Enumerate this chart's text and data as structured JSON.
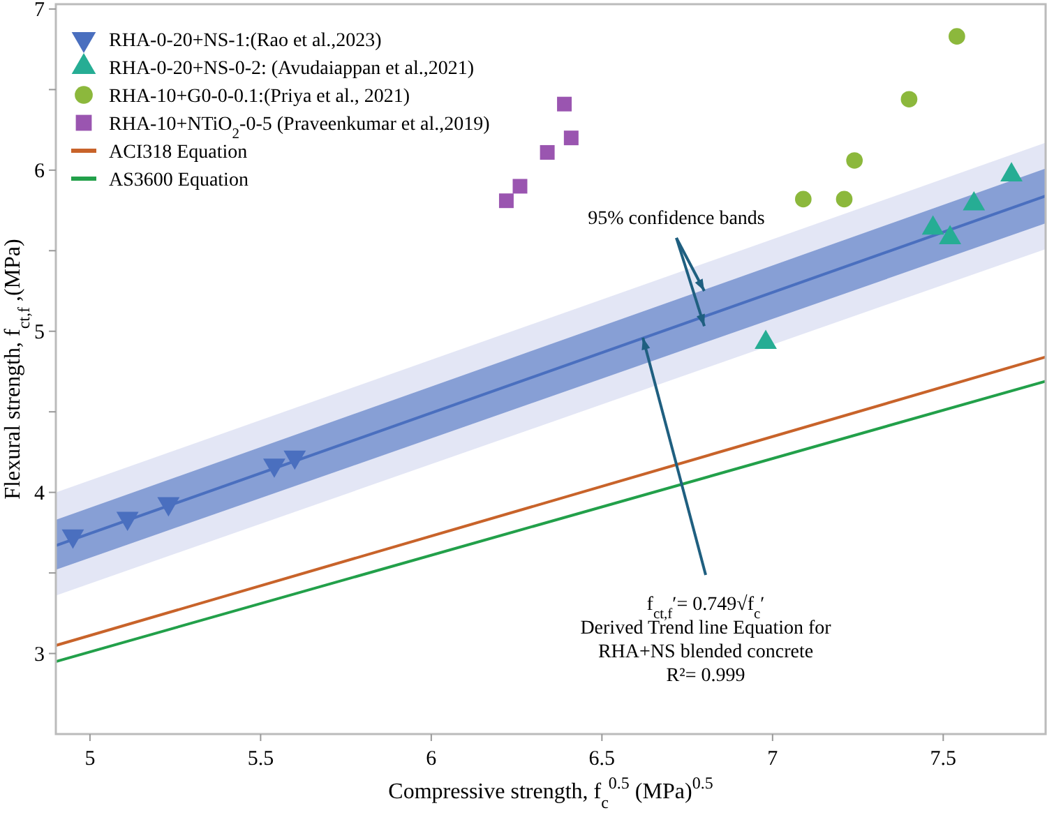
{
  "chart_data": {
    "type": "scatter",
    "xlabel": "Compressive strength, f$_{c}$$^{0.5}$ (MPa)$^{0.5}$",
    "ylabel": "Flexural strength, f$_{ct,f}$ ,(MPa)",
    "xlim": [
      4.9,
      7.8
    ],
    "ylim": [
      2.5,
      7.03
    ],
    "xticks": [
      5,
      5.5,
      6,
      6.5,
      7,
      7.5
    ],
    "yticks": [
      3,
      {
        "value": 3.5,
        "label": null
      },
      4,
      {
        "value": 4.5,
        "label": null
      },
      5,
      {
        "value": 5.5,
        "label": null
      },
      6,
      {
        "value": 6.5,
        "label": null
      },
      7
    ],
    "legend": "top left",
    "grid": false,
    "series": [
      {
        "type": "line",
        "color": "#8f9bd6",
        "x": [
          4.9,
          7.8
        ],
        "values": [
          null,
          null
        ],
        "lower": [
          3.36,
          5.51
        ],
        "upper": [
          4.0,
          6.17
        ]
      },
      {
        "type": "line",
        "color": "#4a6fbf",
        "x": [
          4.9,
          7.8
        ],
        "values": [
          3.67,
          5.84
        ],
        "lower": [
          3.52,
          5.67
        ],
        "upper": [
          3.83,
          6.01
        ]
      },
      {
        "name": "RHA-0-20+NS-1:(Rao et al.,2023)",
        "marker": "triangle-down",
        "color": "#4a6fbf",
        "x": [
          4.95,
          5.11,
          5.23,
          5.54,
          5.6
        ],
        "values": [
          3.73,
          3.84,
          3.93,
          4.17,
          4.22
        ]
      },
      {
        "name": "RHA-0-20+NS-0-2: (Avudaiappan et al.,2021)",
        "marker": "triangle",
        "color": "#26ad94",
        "x": [
          6.98,
          7.47,
          7.52,
          7.59,
          7.7
        ],
        "values": [
          4.93,
          5.64,
          5.58,
          5.79,
          5.97
        ]
      },
      {
        "name": "RHA-10+G0-0-0.1:(Priya et al., 2021)",
        "marker": "circle",
        "color": "#8cb83c",
        "x": [
          7.09,
          7.21,
          7.24,
          7.4,
          7.54
        ],
        "values": [
          5.82,
          5.82,
          6.06,
          6.44,
          6.83
        ]
      },
      {
        "name": "RHA-10+NTiO$_{2}$-0-5 (Praveenkumar et al.,2019)",
        "marker": "square",
        "color": "#9a55b0",
        "x": [
          6.22,
          6.26,
          6.34,
          6.39,
          6.41
        ],
        "values": [
          5.81,
          5.9,
          6.11,
          6.41,
          6.2
        ]
      },
      {
        "name": "ACI318 Equation",
        "type": "line",
        "color": "#c8632a",
        "x": [
          4.9,
          7.8
        ],
        "values": [
          3.05,
          4.84
        ]
      },
      {
        "name": "AS3600 Equation",
        "type": "line",
        "color": "#22a04a",
        "x": [
          4.9,
          7.8
        ],
        "values": [
          2.95,
          4.69
        ]
      }
    ],
    "annotations": [
      {
        "text": "95% confidence bands",
        "x": 6.8,
        "y": 5.25
      },
      {
        "text": "f$_{ct,f}$′= 0.749√f$_{c}$′\nDerived Trend line Equation for\nRHA+NS blended concrete\nR²= 0.999",
        "x": 6.62,
        "y": 4.96
      }
    ]
  }
}
